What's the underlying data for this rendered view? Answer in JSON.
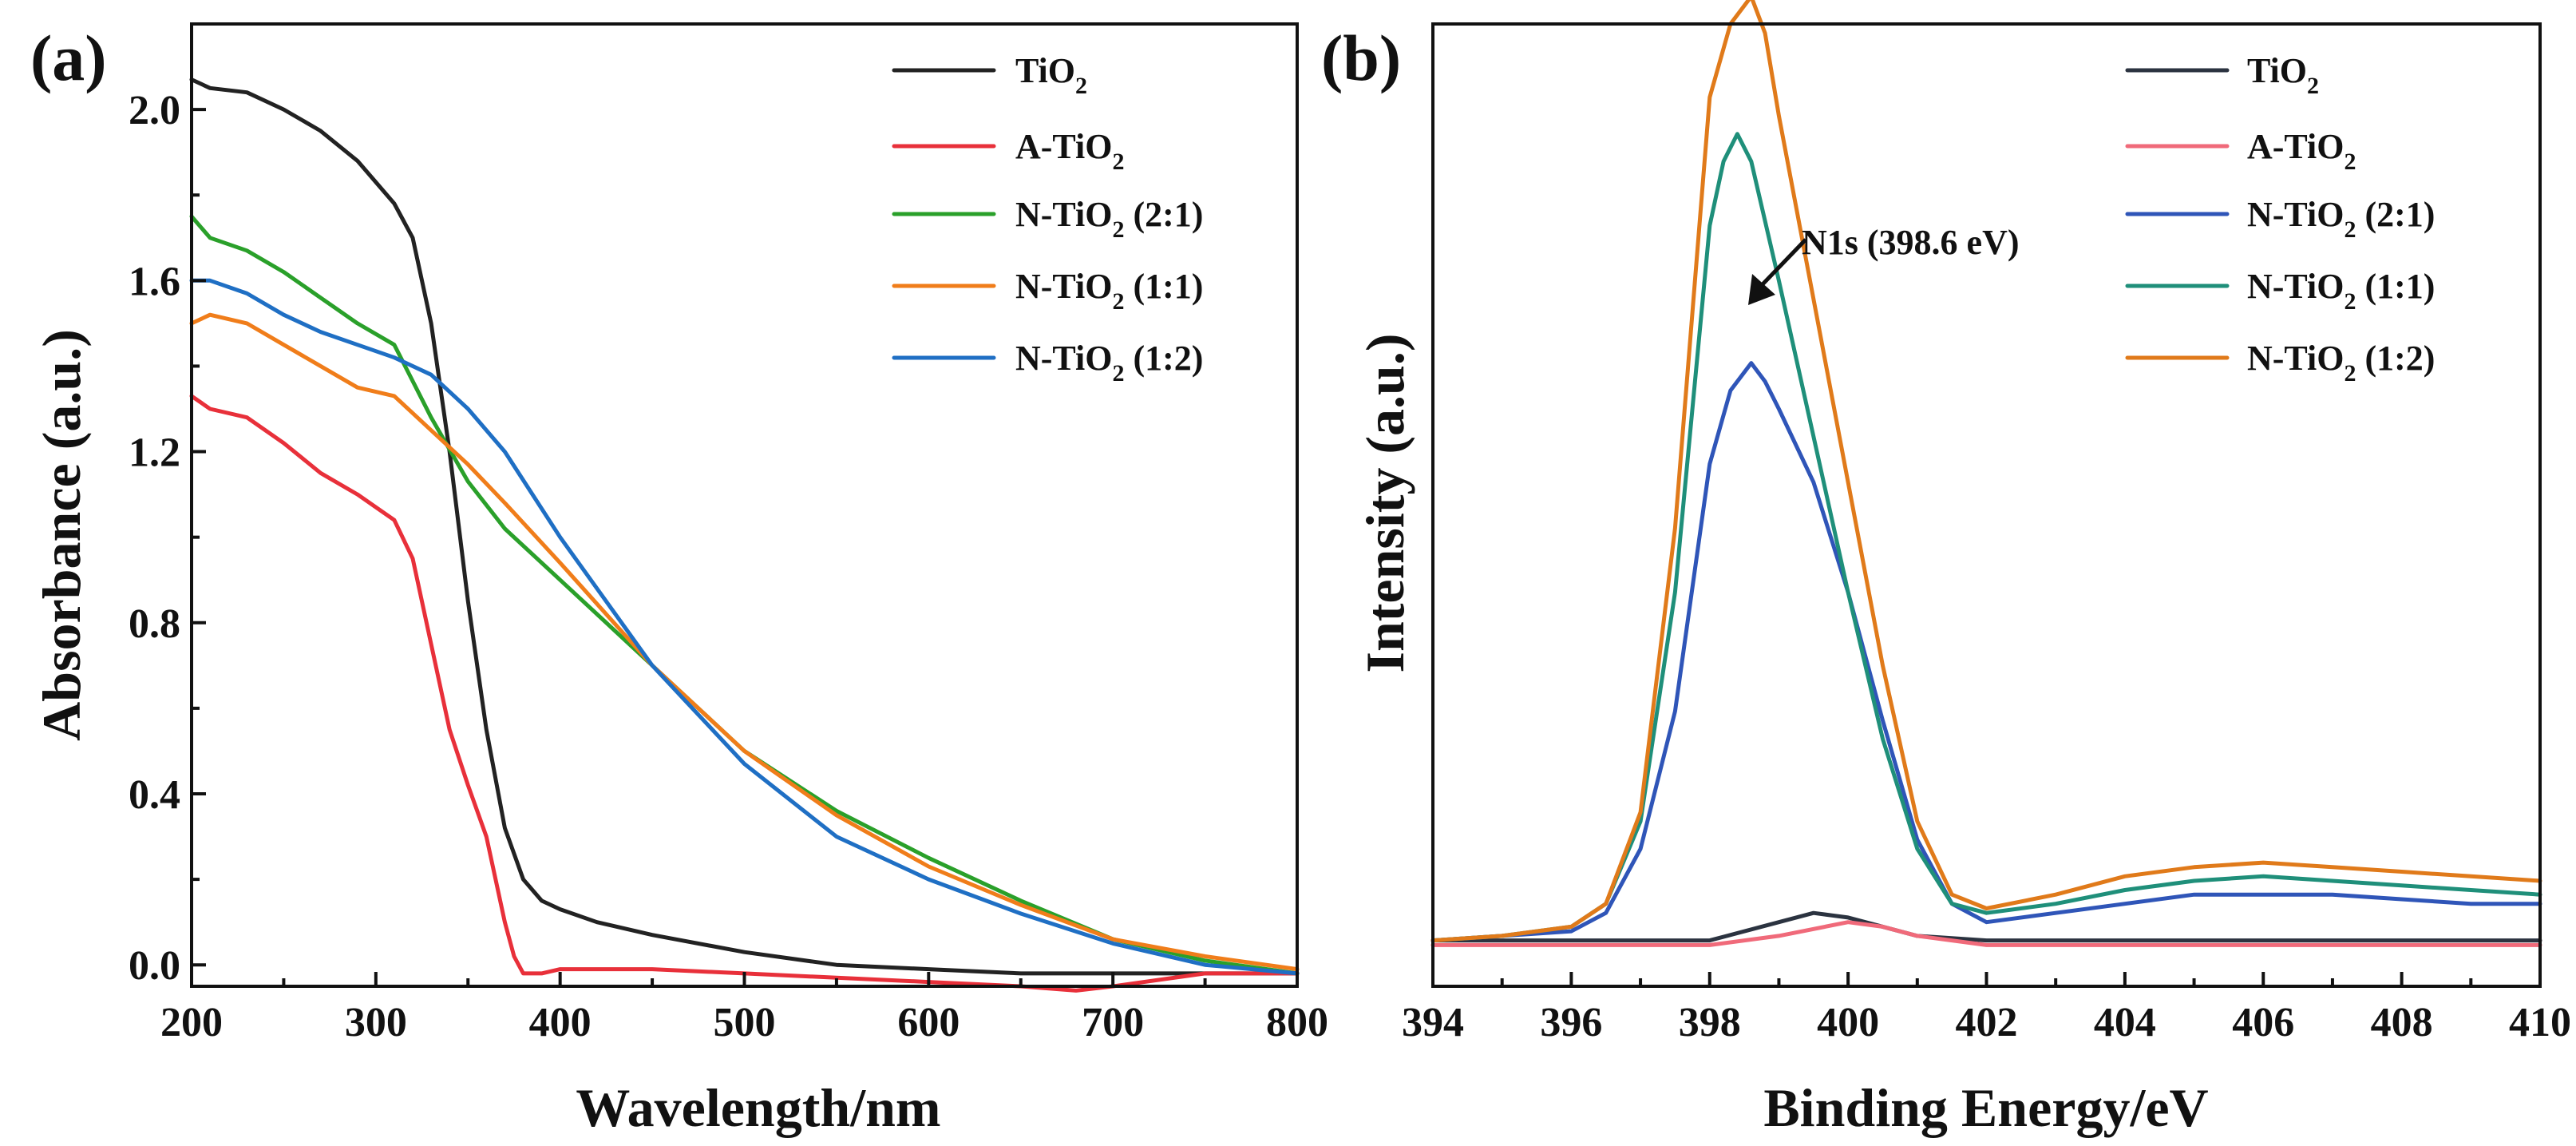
{
  "chart_data": [
    {
      "type": "line",
      "panel_label": "(a)",
      "xlabel": "Wavelength/nm",
      "ylabel": "Absorbance (a.u.)",
      "xlim": [
        200,
        800
      ],
      "ylim": [
        -0.05,
        2.2
      ],
      "xticks": [
        200,
        300,
        400,
        500,
        600,
        700,
        800
      ],
      "xtick_labels": [
        "200",
        "300",
        "400",
        "500",
        "600",
        "700",
        "800"
      ],
      "yticks": [
        0.0,
        0.4,
        0.8,
        1.2,
        1.6,
        2.0
      ],
      "ytick_labels": [
        "0.0",
        "0.4",
        "0.8",
        "1.2",
        "1.6",
        "2.0"
      ],
      "legend_position": "top-right",
      "series": [
        {
          "name": "TiO2",
          "legend_base": "TiO",
          "legend_sub": "2",
          "legend_suffix": "",
          "color": "#222222",
          "x": [
            200,
            210,
            230,
            250,
            270,
            290,
            310,
            320,
            330,
            340,
            350,
            360,
            370,
            380,
            390,
            400,
            420,
            450,
            500,
            550,
            600,
            650,
            700,
            750,
            800
          ],
          "y": [
            2.07,
            2.05,
            2.04,
            2.0,
            1.95,
            1.88,
            1.78,
            1.7,
            1.5,
            1.2,
            0.85,
            0.55,
            0.32,
            0.2,
            0.15,
            0.13,
            0.1,
            0.07,
            0.03,
            0.0,
            -0.01,
            -0.02,
            -0.02,
            -0.02,
            -0.02
          ]
        },
        {
          "name": "A-TiO2",
          "legend_base": "A-TiO",
          "legend_sub": "2",
          "legend_suffix": "",
          "color": "#e8303a",
          "x": [
            200,
            210,
            230,
            250,
            270,
            290,
            310,
            320,
            330,
            340,
            350,
            360,
            370,
            375,
            380,
            390,
            400,
            450,
            500,
            550,
            600,
            650,
            680,
            700,
            750,
            800
          ],
          "y": [
            1.33,
            1.3,
            1.28,
            1.22,
            1.15,
            1.1,
            1.04,
            0.95,
            0.75,
            0.55,
            0.42,
            0.3,
            0.1,
            0.02,
            -0.02,
            -0.02,
            -0.01,
            -0.01,
            -0.02,
            -0.03,
            -0.04,
            -0.05,
            -0.06,
            -0.05,
            -0.02,
            -0.02
          ]
        },
        {
          "name": "N-TiO2 (2:1)",
          "legend_base": "N-TiO",
          "legend_sub": "2",
          "legend_suffix": " (2:1)",
          "color": "#2aa02a",
          "x": [
            200,
            210,
            230,
            250,
            270,
            290,
            310,
            330,
            350,
            370,
            400,
            450,
            500,
            550,
            600,
            650,
            700,
            750,
            800
          ],
          "y": [
            1.75,
            1.7,
            1.67,
            1.62,
            1.56,
            1.5,
            1.45,
            1.28,
            1.13,
            1.02,
            0.9,
            0.7,
            0.5,
            0.36,
            0.25,
            0.15,
            0.06,
            0.01,
            -0.02
          ]
        },
        {
          "name": "N-TiO2 (1:1)",
          "legend_base": "N-TiO",
          "legend_sub": "2",
          "legend_suffix": " (1:1)",
          "color": "#f07d1a",
          "x": [
            200,
            210,
            230,
            250,
            270,
            290,
            310,
            330,
            350,
            370,
            400,
            450,
            500,
            550,
            600,
            650,
            700,
            750,
            800
          ],
          "y": [
            1.5,
            1.52,
            1.5,
            1.45,
            1.4,
            1.35,
            1.33,
            1.25,
            1.17,
            1.08,
            0.94,
            0.7,
            0.5,
            0.35,
            0.23,
            0.14,
            0.06,
            0.02,
            -0.01
          ]
        },
        {
          "name": "N-TiO2 (1:2)",
          "legend_base": "N-TiO",
          "legend_sub": "2",
          "legend_suffix": " (1:2)",
          "color": "#1f6fc4",
          "x": [
            200,
            210,
            230,
            250,
            270,
            290,
            310,
            330,
            350,
            370,
            400,
            450,
            500,
            550,
            600,
            650,
            700,
            750,
            800
          ],
          "y": [
            1.6,
            1.6,
            1.57,
            1.52,
            1.48,
            1.45,
            1.42,
            1.38,
            1.3,
            1.2,
            1.0,
            0.7,
            0.47,
            0.3,
            0.2,
            0.12,
            0.05,
            0.0,
            -0.02
          ]
        }
      ]
    },
    {
      "type": "line",
      "panel_label": "(b)",
      "xlabel": "Binding Energy/eV",
      "ylabel": "Intensity (a.u.)",
      "xlim": [
        394,
        410
      ],
      "ylim": [
        -0.05,
        1.0
      ],
      "xticks": [
        394,
        396,
        398,
        400,
        402,
        404,
        406,
        408,
        410
      ],
      "xtick_labels": [
        "394",
        "396",
        "398",
        "400",
        "402",
        "404",
        "406",
        "408",
        "410"
      ],
      "yticks": [],
      "ytick_labels": [],
      "legend_position": "top-right",
      "annotation": {
        "text": "N1s (398.6 eV)",
        "x": 398.6,
        "y": 0.715
      },
      "series": [
        {
          "name": "TiO2",
          "legend_base": "TiO",
          "legend_sub": "2",
          "legend_suffix": "",
          "color": "#2b3340",
          "x": [
            394,
            396,
            398,
            399,
            399.5,
            400,
            400.5,
            401,
            402,
            404,
            406,
            408,
            410
          ],
          "y": [
            0.0,
            0.0,
            0.0,
            0.02,
            0.03,
            0.025,
            0.015,
            0.005,
            0.0,
            0.0,
            0.0,
            0.0,
            0.0
          ]
        },
        {
          "name": "A-TiO2",
          "legend_base": "A-TiO",
          "legend_sub": "2",
          "legend_suffix": "",
          "color": "#f06a7a",
          "x": [
            394,
            396,
            398,
            399,
            400,
            400.5,
            401,
            402,
            404,
            406,
            408,
            410
          ],
          "y": [
            -0.005,
            -0.005,
            -0.005,
            0.005,
            0.02,
            0.015,
            0.005,
            -0.005,
            -0.005,
            -0.005,
            -0.005,
            -0.005
          ]
        },
        {
          "name": "N-TiO2 (2:1)",
          "legend_base": "N-TiO",
          "legend_sub": "2",
          "legend_suffix": " (2:1)",
          "color": "#2f55b8",
          "x": [
            394,
            395,
            396,
            396.5,
            397,
            397.5,
            398,
            398.3,
            398.6,
            398.8,
            399,
            399.5,
            400,
            400.5,
            401,
            401.5,
            402,
            403,
            404,
            405,
            406,
            407,
            408,
            409,
            410
          ],
          "y": [
            0.0,
            0.005,
            0.01,
            0.03,
            0.1,
            0.25,
            0.52,
            0.6,
            0.63,
            0.61,
            0.58,
            0.5,
            0.38,
            0.24,
            0.11,
            0.04,
            0.02,
            0.03,
            0.04,
            0.05,
            0.05,
            0.05,
            0.045,
            0.04,
            0.04
          ]
        },
        {
          "name": "N-TiO2 (1:1)",
          "legend_base": "N-TiO",
          "legend_sub": "2",
          "legend_suffix": " (1:1)",
          "color": "#1f8f7a",
          "x": [
            394,
            395,
            396,
            396.5,
            397,
            397.5,
            398,
            398.2,
            398.4,
            398.6,
            399,
            399.5,
            400,
            400.5,
            401,
            401.5,
            402,
            403,
            404,
            405,
            406,
            407,
            408,
            409,
            410
          ],
          "y": [
            0.0,
            0.005,
            0.015,
            0.04,
            0.13,
            0.38,
            0.78,
            0.85,
            0.88,
            0.85,
            0.72,
            0.55,
            0.38,
            0.22,
            0.1,
            0.04,
            0.03,
            0.04,
            0.055,
            0.065,
            0.07,
            0.065,
            0.06,
            0.055,
            0.05
          ]
        },
        {
          "name": "N-TiO2 (1:2)",
          "legend_base": "N-TiO",
          "legend_sub": "2",
          "legend_suffix": " (1:2)",
          "color": "#e07a1a",
          "x": [
            394,
            395,
            396,
            396.5,
            397,
            397.5,
            398,
            398.3,
            398.6,
            398.8,
            399,
            399.5,
            400,
            400.5,
            401,
            401.5,
            402,
            403,
            404,
            405,
            406,
            407,
            408,
            409,
            410
          ],
          "y": [
            0.0,
            0.005,
            0.015,
            0.04,
            0.14,
            0.45,
            0.92,
            1.0,
            1.03,
            0.99,
            0.9,
            0.7,
            0.5,
            0.3,
            0.13,
            0.05,
            0.035,
            0.05,
            0.07,
            0.08,
            0.085,
            0.08,
            0.075,
            0.07,
            0.065
          ]
        }
      ]
    }
  ]
}
